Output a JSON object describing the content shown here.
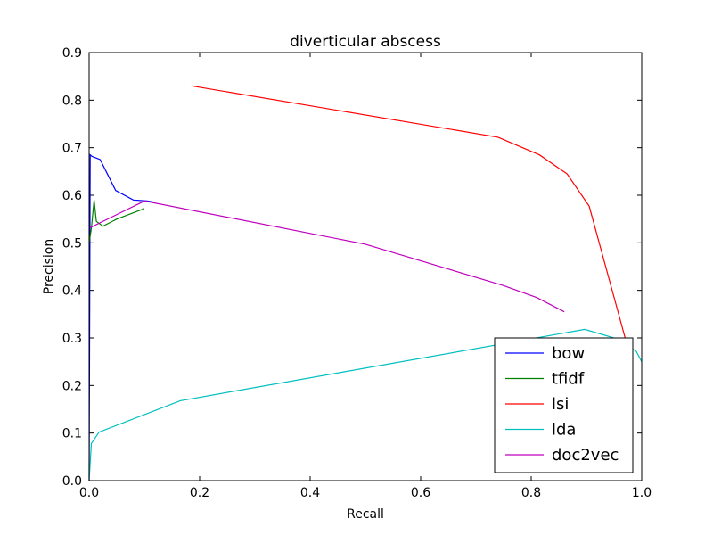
{
  "chart_data": {
    "type": "line",
    "title": "diverticular abscess",
    "xlabel": "Recall",
    "ylabel": "Precision",
    "xlim": [
      0.0,
      1.0
    ],
    "ylim": [
      0.0,
      0.9
    ],
    "xticks": [
      "0.0",
      "0.2",
      "0.4",
      "0.6",
      "0.8",
      "1.0"
    ],
    "yticks": [
      "0.0",
      "0.1",
      "0.2",
      "0.3",
      "0.4",
      "0.5",
      "0.6",
      "0.7",
      "0.8",
      "0.9"
    ],
    "grid": false,
    "legend_position": "lower-right",
    "series": [
      {
        "name": "bow",
        "color": "#0000ff",
        "x": [
          0.0,
          0.002,
          0.005,
          0.02,
          0.048,
          0.08,
          0.105,
          0.12
        ],
        "y": [
          0.0,
          0.685,
          0.682,
          0.675,
          0.61,
          0.59,
          0.588,
          0.585
        ]
      },
      {
        "name": "tfidf",
        "color": "#008000",
        "x": [
          0.0,
          0.004,
          0.009,
          0.013,
          0.025,
          0.05,
          0.1
        ],
        "y": [
          0.5,
          0.53,
          0.59,
          0.545,
          0.535,
          0.55,
          0.572
        ]
      },
      {
        "name": "lsi",
        "color": "#ff0000",
        "x": [
          0.185,
          0.74,
          0.815,
          0.865,
          0.905,
          0.97
        ],
        "y": [
          0.83,
          0.722,
          0.685,
          0.645,
          0.577,
          0.3
        ]
      },
      {
        "name": "lda",
        "color": "#00bfbf",
        "x": [
          0.0,
          0.004,
          0.018,
          0.165,
          0.897,
          0.95,
          0.99,
          1.0
        ],
        "y": [
          0.0,
          0.078,
          0.102,
          0.168,
          0.318,
          0.3,
          0.272,
          0.25
        ]
      },
      {
        "name": "doc2vec",
        "color": "#bf00bf",
        "x": [
          0.002,
          0.1,
          0.5,
          0.75,
          0.81,
          0.86
        ],
        "y": [
          0.532,
          0.588,
          0.497,
          0.41,
          0.385,
          0.355
        ]
      }
    ]
  }
}
